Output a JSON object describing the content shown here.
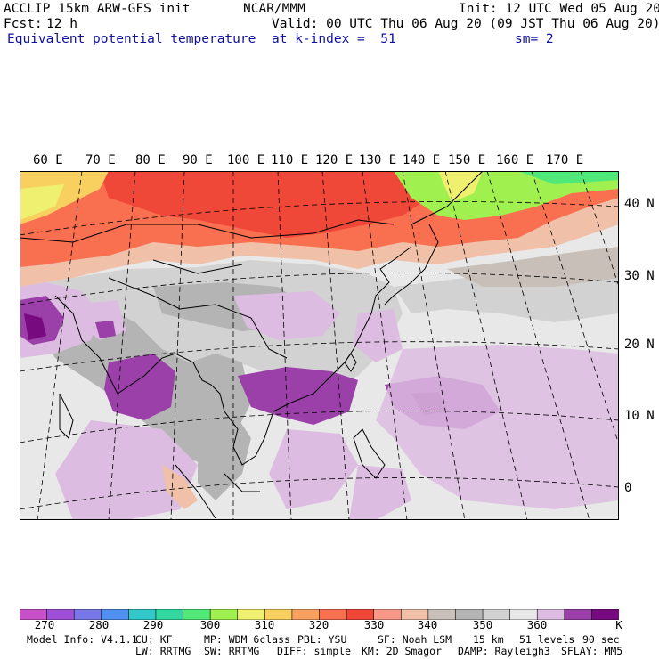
{
  "header": {
    "model": "ACCLIP 15km ARW-GFS init",
    "org": "NCAR/MMM",
    "init": "Init: 12 UTC Wed 05 Aug 20",
    "fcst_label": "Fcst:",
    "fcst_value": "12 h",
    "valid": "Valid: 00 UTC Thu 06 Aug 20 (09 JST Thu 06 Aug 20)",
    "field": "Equivalent potential temperature",
    "level": "at k-index =  51",
    "smoothing": "sm= 2"
  },
  "map": {
    "lon_labels": [
      "60 E",
      "70 E",
      "80 E",
      "90 E",
      "100 E",
      "110 E",
      "120 E",
      "130 E",
      "140 E",
      "150 E",
      "160 E",
      "170 E"
    ],
    "lat_labels": [
      "40 N",
      "30 N",
      "20 N",
      "10 N",
      "0"
    ]
  },
  "legend": {
    "colors": [
      "#c850c8",
      "#a050d8",
      "#7878e8",
      "#5090f0",
      "#30c8c8",
      "#30d8a0",
      "#50e878",
      "#a0f050",
      "#f0f070",
      "#f8d060",
      "#f8a060",
      "#f87050",
      "#f04838",
      "#f89888",
      "#f0c0a8",
      "#c8c0b8",
      "#b4b4b4",
      "#d2d2d2",
      "#e8e8e8",
      "#dcbce0",
      "#9a40a8",
      "#780a80"
    ],
    "ticks": [
      "270",
      "280",
      "290",
      "300",
      "310",
      "320",
      "330",
      "340",
      "350",
      "360"
    ],
    "unit": "K"
  },
  "model_info": {
    "line1": [
      "Model Info: V4.1.1",
      "CU: KF",
      "MP: WDM 6class",
      "PBL: YSU",
      "SF: Noah LSM",
      "15 km",
      "51 levels",
      "90 sec"
    ],
    "line2": [
      "LW: RRTMG",
      "SW: RRTMG",
      "DIFF: simple",
      "KM: 2D Smagor",
      "DAMP: Rayleigh3",
      "SFLAY: MM5"
    ]
  }
}
